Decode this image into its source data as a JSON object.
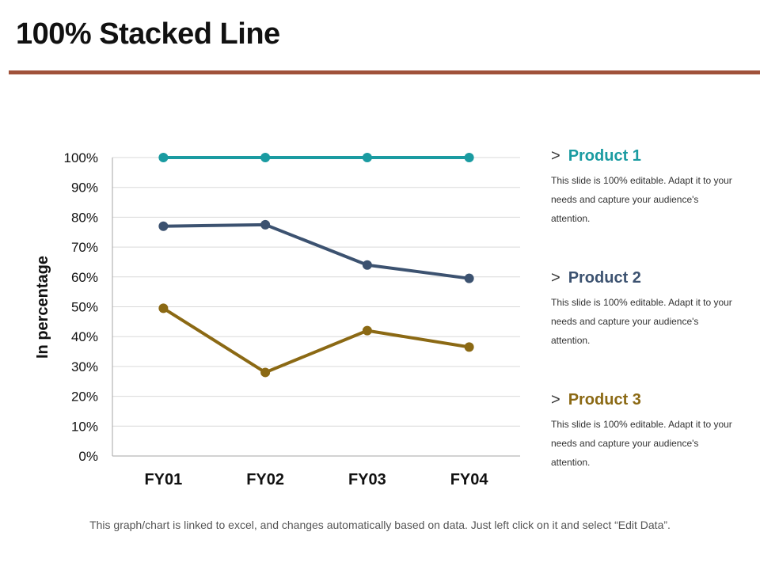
{
  "page": {
    "title": "100% Stacked Line",
    "accent_color": "#A0523A",
    "footnote": "This graph/chart is linked to excel, and changes automatically  based on data. Just left click on it and select “Edit Data”."
  },
  "chart_data": {
    "type": "line",
    "title": "",
    "xlabel": "",
    "ylabel": "In percentage",
    "categories": [
      "FY01",
      "FY02",
      "FY03",
      "FY04"
    ],
    "ylim": [
      0,
      100
    ],
    "yticks": [
      "0%",
      "10%",
      "20%",
      "30%",
      "40%",
      "50%",
      "60%",
      "70%",
      "80%",
      "90%",
      "100%"
    ],
    "grid": true,
    "legend_placement": "right",
    "series": [
      {
        "name": "Product 1",
        "color": "#1A9BA1",
        "values": [
          100,
          100,
          100,
          100
        ]
      },
      {
        "name": "Product 2",
        "color": "#3C5270",
        "values": [
          77,
          77.5,
          64,
          59.5
        ]
      },
      {
        "name": "Product 3",
        "color": "#8B6914",
        "values": [
          49.5,
          28,
          42,
          36.5
        ]
      }
    ]
  },
  "legend": {
    "items": [
      {
        "label": "Product 1",
        "color": "#1A9BA1",
        "description": "This slide is 100% editable. Adapt it to your needs and capture your audience's attention."
      },
      {
        "label": "Product 2",
        "color": "#3C5270",
        "description": "This slide is 100% editable. Adapt it to your needs and capture your audience's attention."
      },
      {
        "label": "Product 3",
        "color": "#8B6914",
        "description": "This slide is 100% editable. Adapt it to your needs and capture your audience's attention."
      }
    ],
    "arrow_glyph": ">"
  }
}
